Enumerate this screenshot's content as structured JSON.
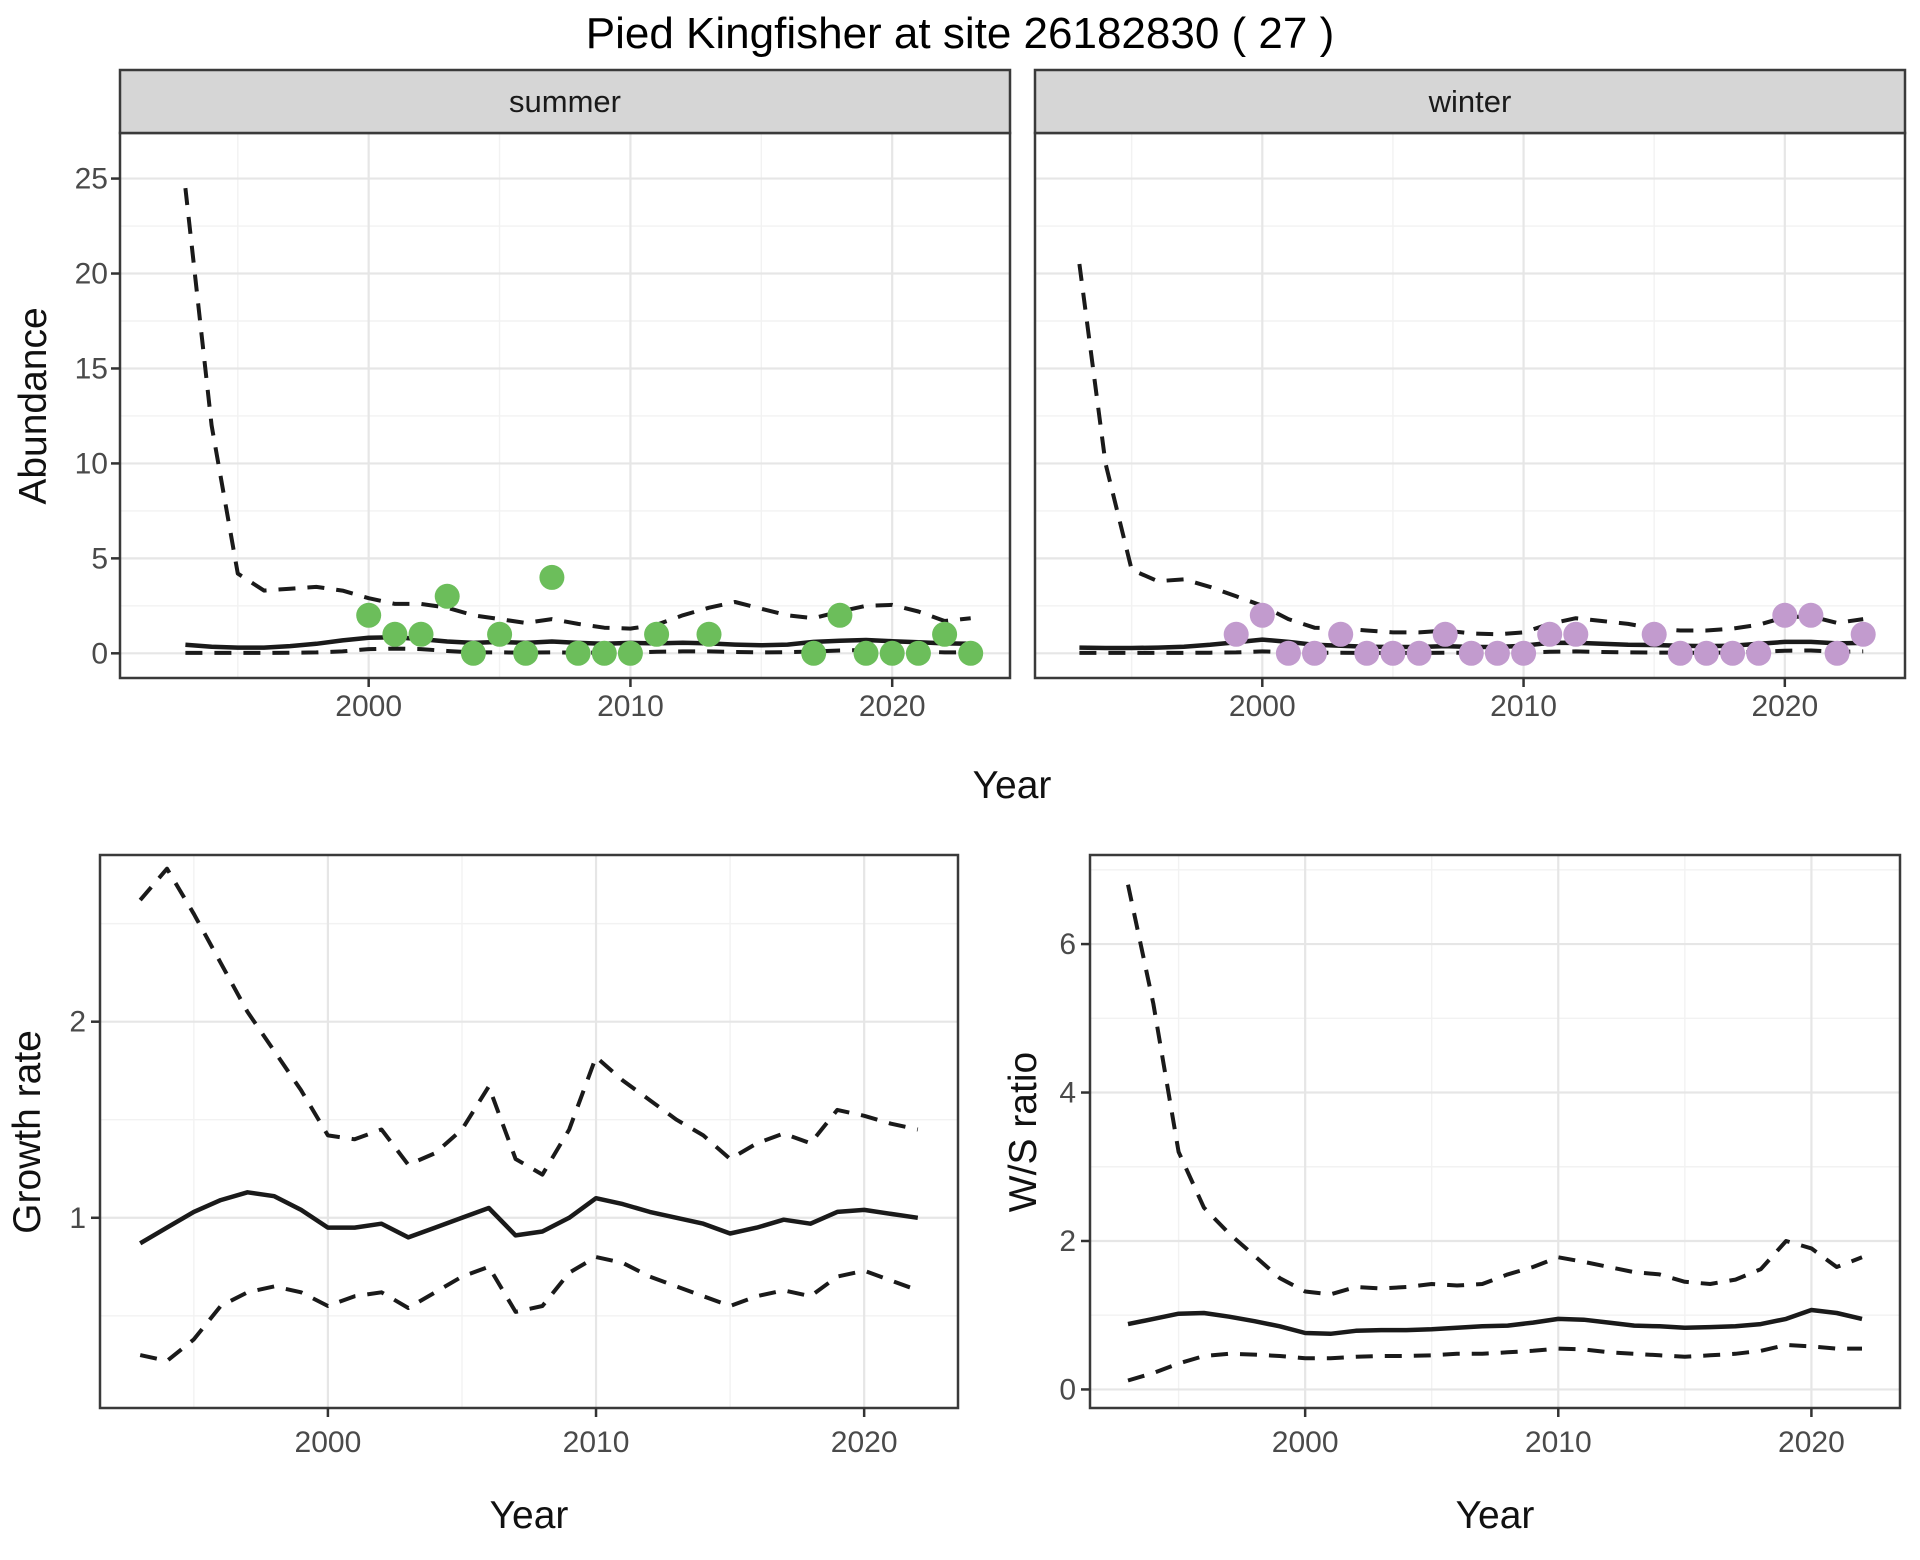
{
  "title": "Pied Kingfisher at site 26182830 ( 27 )",
  "axis_labels": {
    "x": "Year",
    "y_top": "Abundance",
    "y_bottom_left": "Growth rate",
    "y_bottom_right": "W/S ratio"
  },
  "facets": [
    "summer",
    "winter"
  ],
  "colors": {
    "background": "#FFFFFF",
    "summer_point": "#6CBE5B",
    "winter_point": "#C29BCE",
    "line": "#1A1A1A",
    "strip_bg": "#D6D6D6",
    "panel_border": "#3A3A3A",
    "grid_major": "#E6E6E6",
    "grid_minor": "#F2F2F2",
    "tick_mark": "#333333",
    "axis_text": "#4A4A4A"
  },
  "chart_data": [
    {
      "id": "abundance-summer",
      "type": "scatter",
      "facet_label": "summer",
      "xlabel": "Year",
      "ylabel": "Abundance",
      "xlim": [
        1990.5,
        2024.5
      ],
      "ylim": [
        -1.3,
        27.4
      ],
      "x_ticks": [
        2000,
        2010,
        2020
      ],
      "x_minor": [
        1995,
        2005,
        2015
      ],
      "y_ticks": [
        0,
        5,
        10,
        15,
        20,
        25
      ],
      "y_minor": [
        2.5,
        7.5,
        12.5,
        17.5,
        22.5
      ],
      "x": [
        1993,
        1994,
        1995,
        1996,
        1997,
        1998,
        1999,
        2000,
        2001,
        2002,
        2003,
        2004,
        2005,
        2006,
        2007,
        2008,
        2009,
        2010,
        2011,
        2012,
        2013,
        2014,
        2015,
        2016,
        2017,
        2018,
        2019,
        2020,
        2021,
        2022,
        2023
      ],
      "series": [
        {
          "name": "mean",
          "line": "solid",
          "values": [
            0.45,
            0.35,
            0.3,
            0.3,
            0.38,
            0.5,
            0.68,
            0.82,
            0.85,
            0.75,
            0.62,
            0.55,
            0.6,
            0.55,
            0.62,
            0.55,
            0.5,
            0.55,
            0.52,
            0.56,
            0.52,
            0.46,
            0.42,
            0.46,
            0.6,
            0.66,
            0.7,
            0.64,
            0.58,
            0.52,
            0.5
          ]
        },
        {
          "name": "upper-95ci",
          "line": "dashed",
          "values": [
            24.5,
            12.0,
            4.2,
            3.3,
            3.4,
            3.5,
            3.3,
            2.9,
            2.6,
            2.6,
            2.4,
            2.0,
            1.8,
            1.6,
            1.8,
            1.55,
            1.35,
            1.3,
            1.5,
            2.0,
            2.4,
            2.7,
            2.35,
            2.0,
            1.85,
            2.2,
            2.5,
            2.55,
            2.2,
            1.7,
            1.85
          ]
        },
        {
          "name": "lower-95ci",
          "line": "dashed",
          "values": [
            0.02,
            0.02,
            0.02,
            0.02,
            0.03,
            0.05,
            0.1,
            0.22,
            0.25,
            0.22,
            0.12,
            0.05,
            0.05,
            0.04,
            0.05,
            0.04,
            0.03,
            0.04,
            0.08,
            0.1,
            0.1,
            0.07,
            0.05,
            0.06,
            0.1,
            0.15,
            0.18,
            0.15,
            0.1,
            0.05,
            0.05
          ]
        }
      ],
      "points": {
        "name": "observed-abundance",
        "color_key": "summer_point",
        "x": [
          2000,
          2001,
          2002,
          2003,
          2004,
          2005,
          2006,
          2007,
          2008,
          2009,
          2010,
          2011,
          2013,
          2017,
          2018,
          2019,
          2020,
          2021,
          2022,
          2023
        ],
        "y": [
          2,
          1,
          1,
          3,
          0,
          1,
          0,
          4,
          0,
          0,
          0,
          1,
          1,
          0,
          2,
          0,
          0,
          0,
          1,
          0
        ]
      }
    },
    {
      "id": "abundance-winter",
      "type": "scatter",
      "facet_label": "winter",
      "xlabel": "Year",
      "ylabel": "Abundance",
      "xlim": [
        1991.3,
        2024.6
      ],
      "ylim": [
        -1.3,
        27.4
      ],
      "x_ticks": [
        2000,
        2010,
        2020
      ],
      "x_minor": [
        1995,
        2005,
        2015
      ],
      "y_ticks": [
        0,
        5,
        10,
        15,
        20,
        25
      ],
      "y_minor": [
        2.5,
        7.5,
        12.5,
        17.5,
        22.5
      ],
      "x": [
        1993,
        1994,
        1995,
        1996,
        1997,
        1998,
        1999,
        2000,
        2001,
        2002,
        2003,
        2004,
        2005,
        2006,
        2007,
        2008,
        2009,
        2010,
        2011,
        2012,
        2013,
        2014,
        2015,
        2016,
        2017,
        2018,
        2019,
        2020,
        2021,
        2022,
        2023
      ],
      "series": [
        {
          "name": "mean",
          "line": "solid",
          "values": [
            0.3,
            0.28,
            0.28,
            0.3,
            0.35,
            0.45,
            0.58,
            0.72,
            0.6,
            0.45,
            0.4,
            0.35,
            0.33,
            0.33,
            0.38,
            0.33,
            0.33,
            0.4,
            0.55,
            0.56,
            0.5,
            0.45,
            0.44,
            0.4,
            0.38,
            0.4,
            0.5,
            0.6,
            0.6,
            0.52,
            0.55
          ]
        },
        {
          "name": "upper-95ci",
          "line": "dashed",
          "values": [
            20.5,
            10.0,
            4.4,
            3.8,
            3.9,
            3.5,
            3.0,
            2.5,
            1.8,
            1.35,
            1.3,
            1.2,
            1.1,
            1.1,
            1.2,
            1.05,
            1.0,
            1.1,
            1.55,
            1.85,
            1.7,
            1.55,
            1.3,
            1.2,
            1.2,
            1.3,
            1.5,
            1.9,
            1.95,
            1.6,
            1.8
          ]
        },
        {
          "name": "lower-95ci",
          "line": "dashed",
          "values": [
            0.02,
            0.02,
            0.02,
            0.02,
            0.02,
            0.03,
            0.05,
            0.1,
            0.06,
            0.03,
            0.03,
            0.02,
            0.02,
            0.02,
            0.03,
            0.02,
            0.02,
            0.03,
            0.08,
            0.1,
            0.07,
            0.05,
            0.04,
            0.03,
            0.03,
            0.04,
            0.08,
            0.14,
            0.15,
            0.08,
            0.1
          ]
        }
      ],
      "points": {
        "name": "observed-abundance",
        "color_key": "winter_point",
        "x": [
          1999,
          2000,
          2001,
          2002,
          2003,
          2004,
          2005,
          2006,
          2007,
          2008,
          2009,
          2010,
          2011,
          2012,
          2015,
          2016,
          2017,
          2018,
          2019,
          2020,
          2021,
          2022,
          2023
        ],
        "y": [
          1,
          2,
          0,
          0,
          1,
          0,
          0,
          0,
          1,
          0,
          0,
          0,
          1,
          1,
          1,
          0,
          0,
          0,
          0,
          2,
          2,
          0,
          1
        ]
      }
    },
    {
      "id": "growth-rate",
      "type": "line",
      "xlabel": "Year",
      "ylabel": "Growth rate",
      "xlim": [
        1991.5,
        2023.5
      ],
      "ylim": [
        0.03,
        2.85
      ],
      "x_ticks": [
        2000,
        2010,
        2020
      ],
      "x_minor": [
        1995,
        2005,
        2015
      ],
      "y_ticks": [
        1,
        2
      ],
      "y_minor": [
        0.5,
        1.5,
        2.5
      ],
      "x": [
        1993,
        1994,
        1995,
        1996,
        1997,
        1998,
        1999,
        2000,
        2001,
        2002,
        2003,
        2004,
        2005,
        2006,
        2007,
        2008,
        2009,
        2010,
        2011,
        2012,
        2013,
        2014,
        2015,
        2016,
        2017,
        2018,
        2019,
        2020,
        2021,
        2022
      ],
      "series": [
        {
          "name": "mean",
          "line": "solid",
          "values": [
            0.87,
            0.95,
            1.03,
            1.09,
            1.13,
            1.11,
            1.04,
            0.95,
            0.95,
            0.97,
            0.9,
            0.95,
            1.0,
            1.05,
            0.91,
            0.93,
            1.0,
            1.1,
            1.07,
            1.03,
            1.0,
            0.97,
            0.92,
            0.95,
            0.99,
            0.97,
            1.03,
            1.04,
            1.02,
            1.0
          ]
        },
        {
          "name": "upper-95ci",
          "line": "dashed",
          "values": [
            2.62,
            2.78,
            2.55,
            2.3,
            2.05,
            1.85,
            1.65,
            1.42,
            1.4,
            1.45,
            1.27,
            1.33,
            1.45,
            1.67,
            1.3,
            1.22,
            1.45,
            1.82,
            1.7,
            1.6,
            1.5,
            1.42,
            1.3,
            1.38,
            1.43,
            1.38,
            1.55,
            1.52,
            1.48,
            1.45
          ]
        },
        {
          "name": "lower-95ci",
          "line": "dashed",
          "values": [
            0.3,
            0.27,
            0.38,
            0.55,
            0.62,
            0.65,
            0.62,
            0.55,
            0.6,
            0.62,
            0.54,
            0.62,
            0.7,
            0.75,
            0.52,
            0.55,
            0.72,
            0.8,
            0.77,
            0.7,
            0.65,
            0.6,
            0.55,
            0.6,
            0.63,
            0.6,
            0.7,
            0.73,
            0.68,
            0.63
          ]
        }
      ]
    },
    {
      "id": "ws-ratio",
      "type": "line",
      "xlabel": "Year",
      "ylabel": "W/S ratio",
      "xlim": [
        1991.5,
        2023.5
      ],
      "ylim": [
        -0.25,
        7.2
      ],
      "x_ticks": [
        2000,
        2010,
        2020
      ],
      "x_minor": [
        1995,
        2005,
        2015
      ],
      "y_ticks": [
        0,
        2,
        4,
        6
      ],
      "y_minor": [
        1,
        3,
        5,
        7
      ],
      "x": [
        1993,
        1994,
        1995,
        1996,
        1997,
        1998,
        1999,
        2000,
        2001,
        2002,
        2003,
        2004,
        2005,
        2006,
        2007,
        2008,
        2009,
        2010,
        2011,
        2012,
        2013,
        2014,
        2015,
        2016,
        2017,
        2018,
        2019,
        2020,
        2021,
        2022
      ],
      "series": [
        {
          "name": "mean",
          "line": "solid",
          "values": [
            0.88,
            0.95,
            1.02,
            1.03,
            0.98,
            0.92,
            0.85,
            0.76,
            0.75,
            0.79,
            0.8,
            0.8,
            0.81,
            0.83,
            0.85,
            0.86,
            0.9,
            0.95,
            0.94,
            0.9,
            0.86,
            0.85,
            0.83,
            0.84,
            0.85,
            0.88,
            0.95,
            1.07,
            1.03,
            0.95
          ]
        },
        {
          "name": "upper-95ci",
          "line": "dashed",
          "values": [
            6.8,
            5.2,
            3.2,
            2.45,
            2.1,
            1.8,
            1.5,
            1.32,
            1.28,
            1.38,
            1.36,
            1.38,
            1.42,
            1.4,
            1.42,
            1.55,
            1.65,
            1.78,
            1.72,
            1.65,
            1.58,
            1.55,
            1.45,
            1.42,
            1.48,
            1.62,
            2.0,
            1.9,
            1.65,
            1.78
          ]
        },
        {
          "name": "lower-95ci",
          "line": "dashed",
          "values": [
            0.12,
            0.22,
            0.35,
            0.45,
            0.48,
            0.47,
            0.45,
            0.42,
            0.42,
            0.44,
            0.45,
            0.45,
            0.46,
            0.48,
            0.48,
            0.5,
            0.52,
            0.55,
            0.54,
            0.5,
            0.48,
            0.46,
            0.44,
            0.46,
            0.48,
            0.52,
            0.6,
            0.58,
            0.55,
            0.55
          ]
        }
      ]
    }
  ]
}
